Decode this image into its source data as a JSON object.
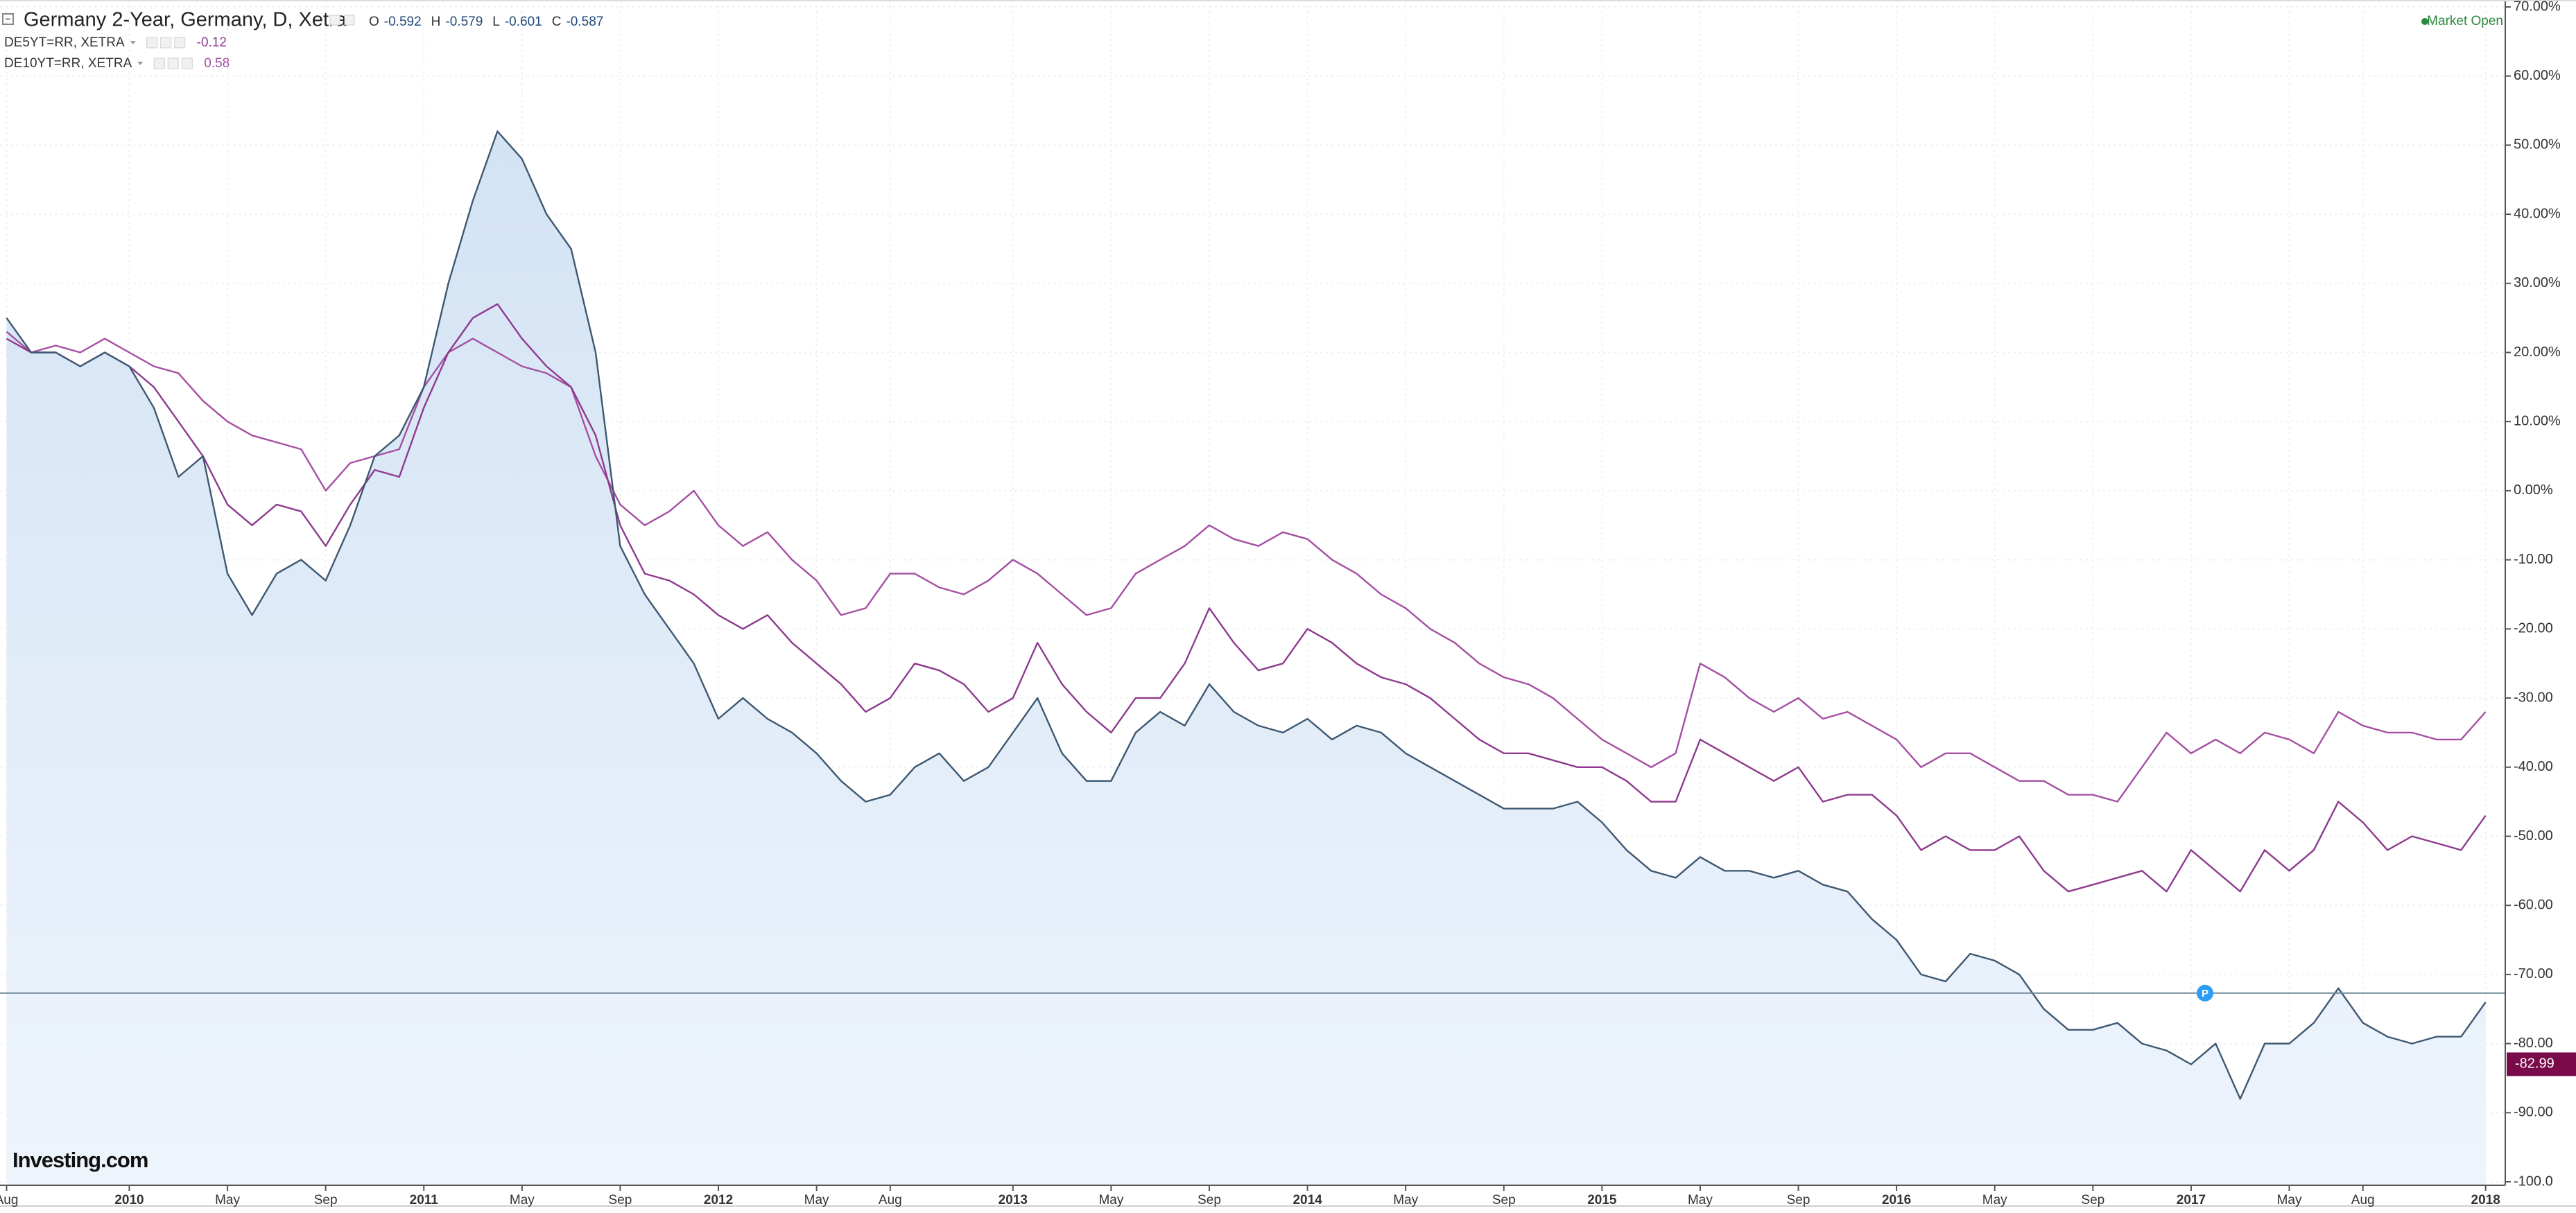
{
  "chart_data": {
    "type": "line",
    "title": "Germany 2-Year, Germany, D, Xetra",
    "ohlc": [
      {
        "label": "O",
        "value": -0.592
      },
      {
        "label": "H",
        "value": -0.579
      },
      {
        "label": "L",
        "value": -0.601
      },
      {
        "label": "C",
        "value": -0.587
      }
    ],
    "categories": [
      "Aug",
      null,
      null,
      null,
      null,
      "2010",
      null,
      null,
      null,
      "May",
      null,
      null,
      null,
      "Sep",
      null,
      null,
      null,
      "2011",
      null,
      null,
      null,
      "May",
      null,
      null,
      null,
      "Sep",
      null,
      null,
      null,
      "2012",
      null,
      null,
      null,
      "May",
      null,
      null,
      "Aug",
      null,
      null,
      null,
      null,
      "2013",
      null,
      null,
      null,
      "May",
      null,
      null,
      null,
      "Sep",
      null,
      null,
      null,
      "2014",
      null,
      null,
      null,
      "May",
      null,
      null,
      null,
      "Sep",
      null,
      null,
      null,
      "2015",
      null,
      null,
      null,
      "May",
      null,
      null,
      null,
      "Sep",
      null,
      null,
      null,
      "2016",
      null,
      null,
      null,
      "May",
      null,
      null,
      null,
      "Sep",
      null,
      null,
      null,
      "2017",
      null,
      null,
      null,
      "May",
      null,
      null,
      "Aug",
      null,
      null,
      null,
      null,
      "2018"
    ],
    "series": [
      {
        "name": "Germany 2-Year, Germany, D, Xetra",
        "color": "#3e5872",
        "area_color": "#e3edf9",
        "values": [
          25,
          20,
          20,
          18,
          20,
          18,
          12,
          2,
          5,
          -12,
          -18,
          -12,
          -10,
          -13,
          -5,
          5,
          8,
          15,
          30,
          42,
          52,
          48,
          40,
          35,
          20,
          -8,
          -15,
          -20,
          -25,
          -33,
          -30,
          -33,
          -35,
          -38,
          -42,
          -45,
          -44,
          -40,
          -38,
          -42,
          -40,
          -35,
          -30,
          -38,
          -42,
          -42,
          -35,
          -32,
          -34,
          -28,
          -32,
          -34,
          -35,
          -33,
          -36,
          -34,
          -35,
          -38,
          -40,
          -42,
          -44,
          -46,
          -46,
          -46,
          -45,
          -48,
          -52,
          -55,
          -56,
          -53,
          -55,
          -55,
          -56,
          -55,
          -57,
          -58,
          -62,
          -65,
          -70,
          -71,
          -67,
          -68,
          -70,
          -75,
          -78,
          -78,
          -77,
          -80,
          -81,
          -83,
          -80,
          -88,
          -80,
          -80,
          -77,
          -72,
          -77,
          -79,
          -80,
          -79,
          -79,
          -74
        ]
      },
      {
        "name": "DE5YT=RR, XETRA",
        "color": "#8e3a8e",
        "legend_value": -0.12,
        "values": [
          22,
          20,
          20,
          18,
          20,
          18,
          15,
          10,
          5,
          -2,
          -5,
          -2,
          -3,
          -8,
          -2,
          3,
          2,
          12,
          20,
          25,
          27,
          22,
          18,
          15,
          8,
          -5,
          -12,
          -13,
          -15,
          -18,
          -20,
          -18,
          -22,
          -25,
          -28,
          -32,
          -30,
          -25,
          -26,
          -28,
          -32,
          -30,
          -22,
          -28,
          -32,
          -35,
          -30,
          -30,
          -25,
          -17,
          -22,
          -26,
          -25,
          -20,
          -22,
          -25,
          -27,
          -28,
          -30,
          -33,
          -36,
          -38,
          -38,
          -39,
          -40,
          -40,
          -42,
          -45,
          -45,
          -36,
          -38,
          -40,
          -42,
          -40,
          -45,
          -44,
          -44,
          -47,
          -52,
          -50,
          -52,
          -52,
          -50,
          -55,
          -58,
          -57,
          -56,
          -55,
          -58,
          -52,
          -55,
          -58,
          -52,
          -55,
          -52,
          -45,
          -48,
          -52,
          -50,
          -51,
          -52,
          -47
        ]
      },
      {
        "name": "DE10YT=RR, XETRA",
        "color": "#a54fa3",
        "legend_value": 0.58,
        "values": [
          23,
          20,
          21,
          20,
          22,
          20,
          18,
          17,
          13,
          10,
          8,
          7,
          6,
          0,
          4,
          5,
          6,
          15,
          20,
          22,
          20,
          18,
          17,
          15,
          5,
          -2,
          -5,
          -3,
          0,
          -5,
          -8,
          -6,
          -10,
          -13,
          -18,
          -17,
          -12,
          -12,
          -14,
          -15,
          -13,
          -10,
          -12,
          -15,
          -18,
          -17,
          -12,
          -10,
          -8,
          -5,
          -7,
          -8,
          -6,
          -7,
          -10,
          -12,
          -15,
          -17,
          -20,
          -22,
          -25,
          -27,
          -28,
          -30,
          -33,
          -36,
          -38,
          -40,
          -38,
          -25,
          -27,
          -30,
          -32,
          -30,
          -33,
          -32,
          -34,
          -36,
          -40,
          -38,
          -38,
          -40,
          -42,
          -42,
          -44,
          -44,
          -45,
          -40,
          -35,
          -38,
          -36,
          -38,
          -35,
          -36,
          -38,
          -32,
          -34,
          -35,
          -35,
          -36,
          -36,
          -32
        ]
      }
    ],
    "ylim": [
      -100.5,
      71
    ],
    "yticks": [
      {
        "value": 70,
        "label": "70.00%"
      },
      {
        "value": 60,
        "label": "60.00%"
      },
      {
        "value": 50,
        "label": "50.00%"
      },
      {
        "value": 40,
        "label": "40.00%"
      },
      {
        "value": 30,
        "label": "30.00%"
      },
      {
        "value": 20,
        "label": "20.00%"
      },
      {
        "value": 10,
        "label": "10.00%"
      },
      {
        "value": 0,
        "label": "0.00%"
      },
      {
        "value": -10,
        "label": "-10.00"
      },
      {
        "value": -20,
        "label": "-20.00"
      },
      {
        "value": -30,
        "label": "-30.00"
      },
      {
        "value": -40,
        "label": "-40.00"
      },
      {
        "value": -50,
        "label": "-50.00"
      },
      {
        "value": -60,
        "label": "-60.00"
      },
      {
        "value": -70,
        "label": "-70.00"
      },
      {
        "value": -80,
        "label": "-80.00"
      },
      {
        "value": -90,
        "label": "-90.00"
      },
      {
        "value": -100,
        "label": "-100.0"
      }
    ],
    "grid": true,
    "hline": -72.7,
    "hline_marker": "P",
    "price_tag": -82.99,
    "price_tag_color": "#7a0b4b",
    "status": "Market Open",
    "logo": "Investing.com"
  }
}
